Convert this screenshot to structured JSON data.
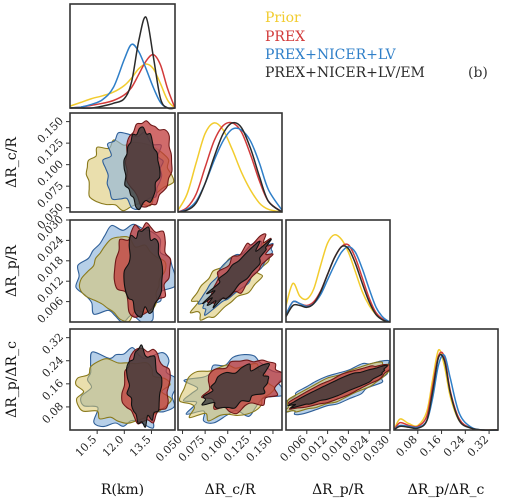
{
  "colors": {
    "prior": "#F2CC2E",
    "prex": "#D23A3A",
    "prex_nicer_lv": "#2F7FC8",
    "prex_nicer_lv_em": "#2B2B2B"
  },
  "chart_data": {
    "type": "corner",
    "panel_tag": "(b)",
    "legend": {
      "placement": "top-right",
      "entries": [
        "Prior",
        "PREX",
        "PREX+NICER+LV",
        "PREX+NICER+LV/EM"
      ]
    },
    "variables": [
      {
        "key": "R",
        "label": "R(km)",
        "range": [
          9.0,
          14.8
        ],
        "ticks": [
          10.5,
          12.0,
          13.5
        ],
        "tick_labels": [
          "10.5",
          "12.0",
          "13.5"
        ]
      },
      {
        "key": "dRc",
        "label": "ΔR_c/R",
        "range": [
          0.045,
          0.16
        ],
        "ticks": [
          0.05,
          0.075,
          0.1,
          0.125,
          0.15
        ],
        "tick_labels": [
          "0.050",
          "0.075",
          "0.100",
          "0.125",
          "0.150"
        ]
      },
      {
        "key": "dRp",
        "label": "ΔR_p/R",
        "range": [
          0.0,
          0.03
        ],
        "ticks": [
          0.006,
          0.012,
          0.018,
          0.024,
          0.03
        ],
        "tick_labels": [
          "0.006",
          "0.012",
          "0.018",
          "0.024",
          "0.030"
        ]
      },
      {
        "key": "ratio",
        "label": "ΔR_p/ΔR_c",
        "range": [
          0.0,
          0.35
        ],
        "ticks": [
          0.08,
          0.16,
          0.24,
          0.32
        ],
        "tick_labels": [
          "0.08",
          "0.16",
          "0.24",
          "0.32"
        ]
      }
    ],
    "series": [
      {
        "name": "Prior",
        "color_key": "prior",
        "marginals": [
          {
            "x": [
              9.0,
              9.6,
              10.2,
              10.8,
              11.4,
              12.0,
              12.4,
              12.8,
              13.2,
              13.6,
              14.0,
              14.4,
              14.8
            ],
            "y": [
              0.02,
              0.06,
              0.1,
              0.13,
              0.17,
              0.24,
              0.32,
              0.42,
              0.47,
              0.42,
              0.26,
              0.08,
              0.0
            ]
          },
          {
            "x": [
              0.045,
              0.055,
              0.065,
              0.075,
              0.085,
              0.095,
              0.105,
              0.115,
              0.125,
              0.135,
              0.145,
              0.16
            ],
            "y": [
              0.02,
              0.2,
              0.55,
              0.88,
              1.0,
              0.92,
              0.7,
              0.45,
              0.25,
              0.1,
              0.03,
              0.0
            ]
          },
          {
            "x": [
              0.0,
              0.002,
              0.004,
              0.006,
              0.008,
              0.01,
              0.012,
              0.014,
              0.016,
              0.018,
              0.02,
              0.022,
              0.024,
              0.026,
              0.028,
              0.03
            ],
            "y": [
              0.18,
              0.42,
              0.28,
              0.25,
              0.36,
              0.62,
              0.86,
              0.95,
              0.9,
              0.76,
              0.55,
              0.33,
              0.18,
              0.08,
              0.02,
              0.0
            ]
          },
          {
            "x": [
              0.0,
              0.02,
              0.05,
              0.08,
              0.11,
              0.13,
              0.15,
              0.17,
              0.19,
              0.22,
              0.26,
              0.3,
              0.35
            ],
            "y": [
              0.0,
              0.12,
              0.07,
              0.05,
              0.2,
              0.55,
              0.88,
              0.7,
              0.36,
              0.1,
              0.02,
              0.0,
              0.0
            ]
          }
        ]
      },
      {
        "name": "PREX",
        "color_key": "prex",
        "marginals": [
          {
            "x": [
              9.0,
              9.6,
              10.2,
              10.8,
              11.4,
              12.0,
              12.4,
              12.8,
              13.2,
              13.6,
              14.0,
              14.4,
              14.8
            ],
            "y": [
              0.0,
              0.01,
              0.03,
              0.05,
              0.08,
              0.14,
              0.22,
              0.36,
              0.5,
              0.57,
              0.46,
              0.2,
              0.0
            ]
          },
          {
            "x": [
              0.045,
              0.055,
              0.065,
              0.075,
              0.085,
              0.095,
              0.105,
              0.115,
              0.125,
              0.135,
              0.145,
              0.16
            ],
            "y": [
              0.0,
              0.05,
              0.2,
              0.5,
              0.8,
              0.97,
              1.0,
              0.9,
              0.65,
              0.35,
              0.12,
              0.0
            ]
          },
          {
            "x": [
              0.0,
              0.002,
              0.004,
              0.006,
              0.008,
              0.01,
              0.012,
              0.014,
              0.016,
              0.018,
              0.02,
              0.022,
              0.024,
              0.026,
              0.028,
              0.03
            ],
            "y": [
              0.08,
              0.22,
              0.2,
              0.18,
              0.22,
              0.34,
              0.52,
              0.7,
              0.82,
              0.84,
              0.7,
              0.48,
              0.26,
              0.1,
              0.03,
              0.0
            ]
          },
          {
            "x": [
              0.0,
              0.02,
              0.05,
              0.08,
              0.11,
              0.13,
              0.15,
              0.17,
              0.19,
              0.22,
              0.26,
              0.3,
              0.35
            ],
            "y": [
              0.0,
              0.08,
              0.05,
              0.04,
              0.15,
              0.48,
              0.82,
              0.8,
              0.42,
              0.12,
              0.02,
              0.0,
              0.0
            ]
          }
        ]
      },
      {
        "name": "PREX+NICER+LV",
        "color_key": "prex_nicer_lv",
        "marginals": [
          {
            "x": [
              9.0,
              9.6,
              10.2,
              10.8,
              11.4,
              12.0,
              12.4,
              12.8,
              13.2,
              13.6,
              14.0,
              14.4,
              14.8
            ],
            "y": [
              0.0,
              0.01,
              0.04,
              0.09,
              0.22,
              0.52,
              0.68,
              0.6,
              0.42,
              0.22,
              0.06,
              0.0,
              0.0
            ]
          },
          {
            "x": [
              0.045,
              0.055,
              0.065,
              0.075,
              0.085,
              0.095,
              0.105,
              0.115,
              0.125,
              0.135,
              0.145,
              0.16
            ],
            "y": [
              0.0,
              0.03,
              0.12,
              0.32,
              0.58,
              0.8,
              0.93,
              0.92,
              0.8,
              0.55,
              0.25,
              0.02
            ]
          },
          {
            "x": [
              0.0,
              0.002,
              0.004,
              0.006,
              0.008,
              0.01,
              0.012,
              0.014,
              0.016,
              0.018,
              0.02,
              0.022,
              0.024,
              0.026,
              0.028,
              0.03
            ],
            "y": [
              0.08,
              0.22,
              0.2,
              0.17,
              0.2,
              0.3,
              0.46,
              0.62,
              0.76,
              0.82,
              0.76,
              0.58,
              0.36,
              0.16,
              0.05,
              0.0
            ]
          },
          {
            "x": [
              0.0,
              0.02,
              0.05,
              0.08,
              0.11,
              0.13,
              0.15,
              0.17,
              0.19,
              0.22,
              0.26,
              0.3,
              0.35
            ],
            "y": [
              0.0,
              0.05,
              0.04,
              0.03,
              0.1,
              0.35,
              0.72,
              0.82,
              0.56,
              0.18,
              0.03,
              0.0,
              0.0
            ]
          }
        ]
      },
      {
        "name": "PREX+NICER+LV/EM",
        "color_key": "prex_nicer_lv_em",
        "marginals": [
          {
            "x": [
              9.0,
              9.6,
              10.2,
              10.8,
              11.4,
              12.0,
              12.4,
              12.8,
              13.2,
              13.6,
              14.0,
              14.4,
              14.8
            ],
            "y": [
              0.0,
              0.0,
              0.0,
              0.02,
              0.05,
              0.1,
              0.28,
              0.72,
              0.97,
              0.55,
              0.1,
              0.0,
              0.0
            ]
          },
          {
            "x": [
              0.045,
              0.055,
              0.065,
              0.075,
              0.085,
              0.095,
              0.105,
              0.115,
              0.125,
              0.135,
              0.145,
              0.16
            ],
            "y": [
              0.0,
              0.02,
              0.1,
              0.32,
              0.62,
              0.88,
              1.0,
              0.95,
              0.72,
              0.4,
              0.12,
              0.0
            ]
          },
          {
            "x": [
              0.0,
              0.002,
              0.004,
              0.006,
              0.008,
              0.01,
              0.012,
              0.014,
              0.016,
              0.018,
              0.02,
              0.022,
              0.024,
              0.026,
              0.028,
              0.03
            ],
            "y": [
              0.06,
              0.18,
              0.18,
              0.16,
              0.2,
              0.33,
              0.52,
              0.7,
              0.82,
              0.8,
              0.64,
              0.42,
              0.22,
              0.08,
              0.02,
              0.0
            ]
          },
          {
            "x": [
              0.0,
              0.02,
              0.05,
              0.08,
              0.11,
              0.13,
              0.15,
              0.17,
              0.19,
              0.22,
              0.26,
              0.3,
              0.35
            ],
            "y": [
              0.0,
              0.04,
              0.03,
              0.02,
              0.1,
              0.42,
              0.8,
              0.76,
              0.4,
              0.1,
              0.02,
              0.0,
              0.0
            ]
          }
        ]
      }
    ]
  }
}
